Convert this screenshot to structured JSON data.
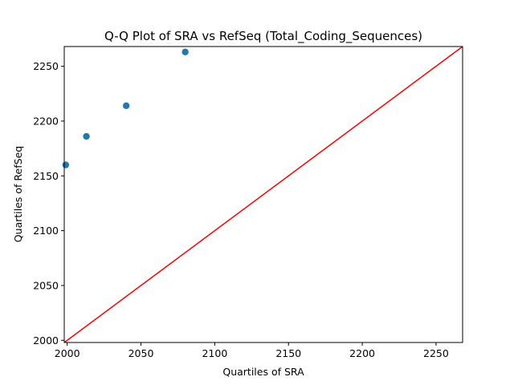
{
  "chart_data": {
    "type": "scatter",
    "title": "Q-Q Plot of SRA vs RefSeq (Total_Coding_Sequences)",
    "xlabel": "Quartiles of SRA",
    "ylabel": "Quartiles of RefSeq",
    "xlim": [
      1998,
      2268
    ],
    "ylim": [
      1998,
      2268
    ],
    "x_ticks": [
      2000,
      2050,
      2100,
      2150,
      2200,
      2250
    ],
    "y_ticks": [
      2000,
      2050,
      2100,
      2150,
      2200,
      2250
    ],
    "grid": false,
    "series": [
      {
        "type": "scatter",
        "color": "#1f77b4",
        "points": [
          {
            "x": 1999,
            "y": 2160
          },
          {
            "x": 2013,
            "y": 2186
          },
          {
            "x": 2040,
            "y": 2214
          },
          {
            "x": 2080,
            "y": 2263
          }
        ]
      },
      {
        "type": "line",
        "color": "#ff0000",
        "points": [
          {
            "x": 1998,
            "y": 1998
          },
          {
            "x": 2268,
            "y": 2268
          }
        ]
      }
    ]
  }
}
